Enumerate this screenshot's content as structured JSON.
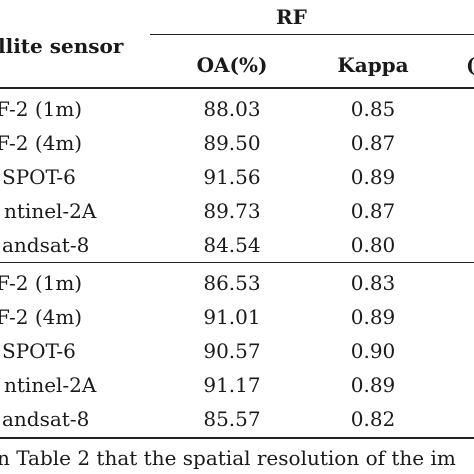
{
  "table": {
    "group_header": "RF",
    "col_sensor": "llite sensor",
    "col_oa": "OA(%)",
    "col_kappa": "Kappa",
    "col_partial": "(",
    "rows": [
      {
        "sensor": "F-2 (1m)",
        "oa": "88.03",
        "kappa": "0.85"
      },
      {
        "sensor": "F-2 (4m)",
        "oa": "89.50",
        "kappa": "0.87"
      },
      {
        "sensor": "SPOT-6",
        "oa": "91.56",
        "kappa": "0.89"
      },
      {
        "sensor": "ntinel-2A",
        "oa": "89.73",
        "kappa": "0.87"
      },
      {
        "sensor": "andsat-8",
        "oa": "84.54",
        "kappa": "0.80"
      },
      {
        "sensor": "F-2 (1m)",
        "oa": "86.53",
        "kappa": "0.83"
      },
      {
        "sensor": "F-2 (4m)",
        "oa": "91.01",
        "kappa": "0.89"
      },
      {
        "sensor": "SPOT-6",
        "oa": "90.57",
        "kappa": "0.90"
      },
      {
        "sensor": "ntinel-2A",
        "oa": "91.17",
        "kappa": "0.89"
      },
      {
        "sensor": "andsat-8",
        "oa": "85.57",
        "kappa": "0.82"
      }
    ]
  },
  "footer_text": "n Table 2 that the spatial resolution of the im"
}
